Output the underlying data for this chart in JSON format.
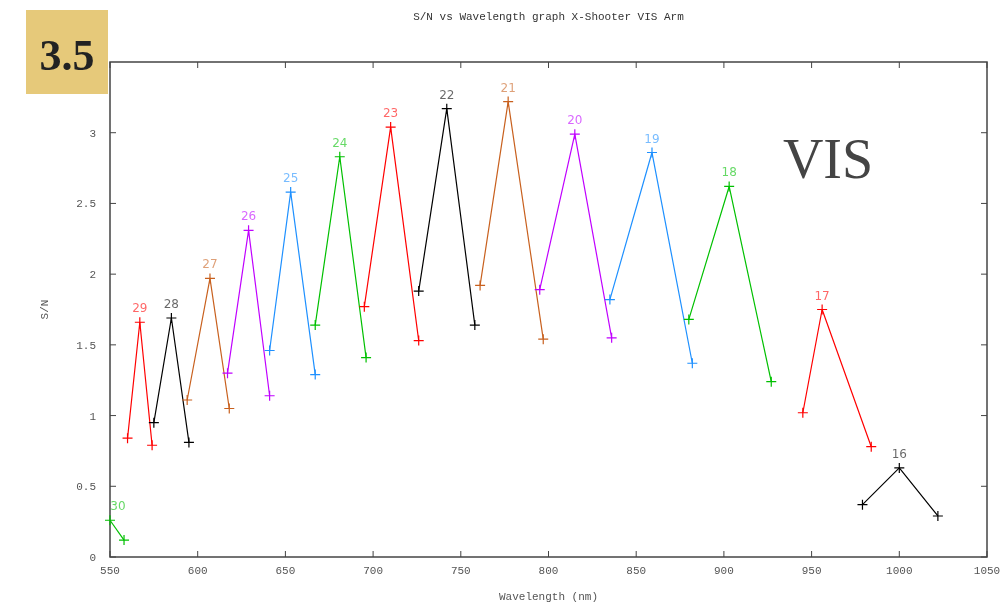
{
  "chart_data": {
    "type": "line",
    "title": "S/N vs Wavelength graph X-Shooter VIS Arm",
    "xlabel": "Wavelength (nm)",
    "ylabel": "S/N",
    "xlim": [
      550,
      1050
    ],
    "xticks": [
      550,
      600,
      650,
      700,
      750,
      800,
      850,
      900,
      950,
      1000,
      1050
    ],
    "ylim": [
      0,
      3.5
    ],
    "yticks": [
      0,
      0.5,
      1,
      1.5,
      2,
      2.5,
      3
    ],
    "marker": "cross",
    "line_style": "solid",
    "annotations": [
      "3.5",
      "VIS"
    ],
    "series": [
      {
        "name": "30",
        "color": "#00c000",
        "x": [
          550,
          558
        ],
        "values": [
          0.26,
          0.12
        ]
      },
      {
        "name": "29",
        "color": "#ff0000",
        "x": [
          560,
          567,
          574
        ],
        "values": [
          0.84,
          1.66,
          0.79
        ]
      },
      {
        "name": "28",
        "color": "#000000",
        "x": [
          575,
          585,
          595
        ],
        "values": [
          0.95,
          1.69,
          0.81
        ]
      },
      {
        "name": "27",
        "color": "#c8601e",
        "x": [
          594,
          607,
          618
        ],
        "values": [
          1.11,
          1.97,
          1.05
        ]
      },
      {
        "name": "26",
        "color": "#c000ff",
        "x": [
          617,
          629,
          641
        ],
        "values": [
          1.3,
          2.31,
          1.14
        ]
      },
      {
        "name": "25",
        "color": "#1e90ff",
        "x": [
          641,
          653,
          667
        ],
        "values": [
          1.46,
          2.58,
          1.29
        ]
      },
      {
        "name": "24",
        "color": "#00c000",
        "x": [
          667,
          681,
          696
        ],
        "values": [
          1.64,
          2.83,
          1.41
        ]
      },
      {
        "name": "23",
        "color": "#ff0000",
        "x": [
          695,
          710,
          726
        ],
        "values": [
          1.77,
          3.04,
          1.53
        ]
      },
      {
        "name": "22",
        "color": "#000000",
        "x": [
          726,
          742,
          758
        ],
        "values": [
          1.88,
          3.17,
          1.64
        ]
      },
      {
        "name": "21",
        "color": "#c8601e",
        "x": [
          761,
          777,
          797
        ],
        "values": [
          1.92,
          3.22,
          1.54
        ]
      },
      {
        "name": "20",
        "color": "#c000ff",
        "x": [
          795,
          815,
          836
        ],
        "values": [
          1.89,
          2.99,
          1.55
        ]
      },
      {
        "name": "19",
        "color": "#1e90ff",
        "x": [
          835,
          859,
          882
        ],
        "values": [
          1.82,
          2.86,
          1.37
        ]
      },
      {
        "name": "18",
        "color": "#00c000",
        "x": [
          880,
          903,
          927
        ],
        "values": [
          1.68,
          2.62,
          1.24
        ]
      },
      {
        "name": "17",
        "color": "#ff0000",
        "x": [
          945,
          956,
          984
        ],
        "values": [
          1.02,
          1.75,
          0.78
        ]
      },
      {
        "name": "16",
        "color": "#000000",
        "x": [
          979,
          1000,
          1022
        ],
        "values": [
          0.37,
          0.63,
          0.29
        ]
      }
    ]
  }
}
